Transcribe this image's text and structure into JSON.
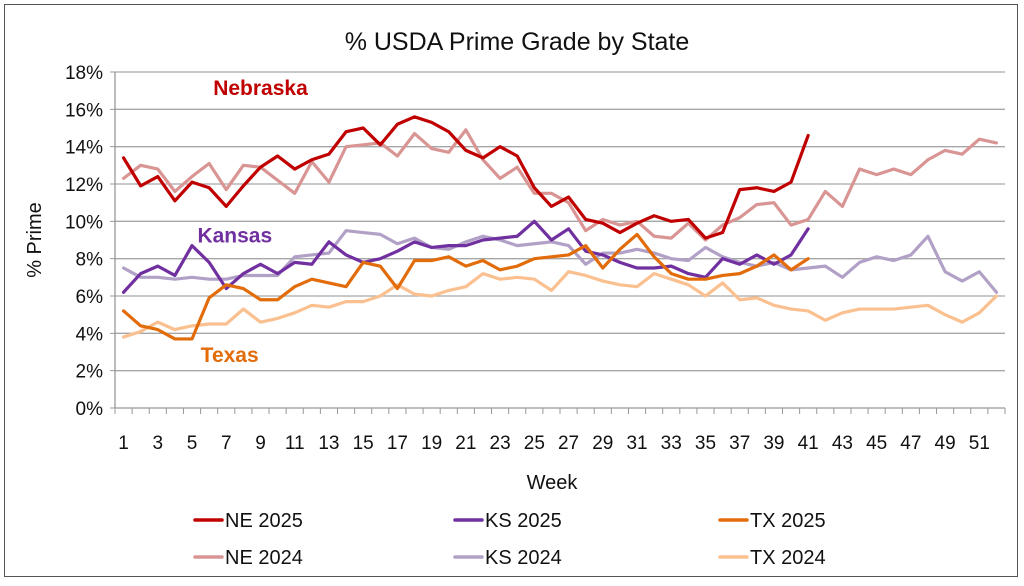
{
  "chart_data": {
    "type": "line",
    "title": "% USDA Prime Grade by State",
    "xlabel": "Week",
    "ylabel": "% Prime",
    "ylim": [
      0,
      18
    ],
    "y_ticks": [
      "0%",
      "2%",
      "4%",
      "6%",
      "8%",
      "10%",
      "12%",
      "14%",
      "16%",
      "18%"
    ],
    "x_tick_labels": [
      "1",
      "3",
      "5",
      "7",
      "9",
      "11",
      "13",
      "15",
      "17",
      "19",
      "21",
      "23",
      "25",
      "27",
      "29",
      "31",
      "33",
      "35",
      "37",
      "39",
      "41",
      "43",
      "45",
      "47",
      "49",
      "51"
    ],
    "grid": true,
    "legend_position": "bottom",
    "x": [
      1,
      2,
      3,
      4,
      5,
      6,
      7,
      8,
      9,
      10,
      11,
      12,
      13,
      14,
      15,
      16,
      17,
      18,
      19,
      20,
      21,
      22,
      23,
      24,
      25,
      26,
      27,
      28,
      29,
      30,
      31,
      32,
      33,
      34,
      35,
      36,
      37,
      38,
      39,
      40,
      41,
      42,
      43,
      44,
      45,
      46,
      47,
      48,
      49,
      50,
      51,
      52
    ],
    "series": [
      {
        "name": "NE 2025",
        "color": "#c00000",
        "values": [
          13.4,
          11.9,
          12.4,
          11.1,
          12.1,
          11.8,
          10.8,
          11.9,
          12.9,
          13.5,
          12.8,
          13.3,
          13.6,
          14.8,
          15.0,
          14.1,
          15.2,
          15.6,
          15.3,
          14.8,
          13.8,
          13.4,
          14.0,
          13.5,
          11.8,
          10.8,
          11.3,
          10.1,
          9.9,
          9.4,
          9.9,
          10.3,
          10.0,
          10.1,
          9.1,
          9.4,
          11.7,
          11.8,
          11.6,
          12.1,
          14.6
        ]
      },
      {
        "name": "KS 2025",
        "color": "#7030a0",
        "values": [
          6.2,
          7.2,
          7.6,
          7.1,
          8.7,
          7.8,
          6.4,
          7.2,
          7.7,
          7.2,
          7.8,
          7.7,
          8.9,
          8.2,
          7.8,
          8.0,
          8.4,
          8.9,
          8.6,
          8.7,
          8.7,
          9.0,
          9.1,
          9.2,
          10.0,
          9.0,
          9.6,
          8.4,
          8.2,
          7.8,
          7.5,
          7.5,
          7.6,
          7.2,
          7.0,
          8.0,
          7.7,
          8.2,
          7.7,
          8.2,
          9.6
        ]
      },
      {
        "name": "TX 2025",
        "color": "#e36c0a",
        "values": [
          5.2,
          4.4,
          4.2,
          3.7,
          3.7,
          5.9,
          6.6,
          6.4,
          5.8,
          5.8,
          6.5,
          6.9,
          6.7,
          6.5,
          7.8,
          7.6,
          6.4,
          7.9,
          7.9,
          8.1,
          7.6,
          7.9,
          7.4,
          7.6,
          8.0,
          8.1,
          8.2,
          8.7,
          7.5,
          8.5,
          9.3,
          8.1,
          7.2,
          6.9,
          6.9,
          7.1,
          7.2,
          7.6,
          8.2,
          7.4,
          8.0
        ]
      },
      {
        "name": "NE 2024",
        "color": "#d99594",
        "values": [
          12.3,
          13.0,
          12.8,
          11.6,
          12.4,
          13.1,
          11.7,
          13.0,
          12.9,
          12.2,
          11.5,
          13.2,
          12.1,
          14.0,
          14.1,
          14.2,
          13.5,
          14.7,
          13.9,
          13.7,
          14.9,
          13.3,
          12.3,
          12.9,
          11.5,
          11.5,
          11.0,
          9.5,
          10.1,
          9.8,
          10.0,
          9.2,
          9.1,
          9.9,
          9.0,
          9.8,
          10.2,
          10.9,
          11.0,
          9.8,
          10.1,
          11.6,
          10.8,
          12.8,
          12.5,
          12.8,
          12.5,
          13.3,
          13.8,
          13.6,
          14.4,
          14.2
        ]
      },
      {
        "name": "KS 2024",
        "color": "#b2a1c7",
        "values": [
          7.5,
          7.0,
          7.0,
          6.9,
          7.0,
          6.9,
          6.9,
          7.1,
          7.1,
          7.1,
          8.1,
          8.2,
          8.3,
          9.5,
          9.4,
          9.3,
          8.8,
          9.1,
          8.6,
          8.5,
          8.9,
          9.2,
          9.0,
          8.7,
          8.8,
          8.9,
          8.7,
          7.7,
          8.3,
          8.3,
          8.5,
          8.3,
          8.0,
          7.9,
          8.6,
          8.1,
          7.8,
          7.6,
          7.8,
          7.4,
          7.5,
          7.6,
          7.0,
          7.8,
          8.1,
          7.9,
          8.2,
          9.2,
          7.3,
          6.8,
          7.3,
          6.2
        ]
      },
      {
        "name": "TX 2024",
        "color": "#fac090",
        "values": [
          3.8,
          4.1,
          4.6,
          4.2,
          4.4,
          4.5,
          4.5,
          5.3,
          4.6,
          4.8,
          5.1,
          5.5,
          5.4,
          5.7,
          5.7,
          6.0,
          6.6,
          6.1,
          6.0,
          6.3,
          6.5,
          7.2,
          6.9,
          7.0,
          6.9,
          6.3,
          7.3,
          7.1,
          6.8,
          6.6,
          6.5,
          7.2,
          6.9,
          6.6,
          6.0,
          6.7,
          5.8,
          5.9,
          5.5,
          5.3,
          5.2,
          4.7,
          5.1,
          5.3,
          5.3,
          5.3,
          5.4,
          5.5,
          5.0,
          4.6,
          5.1,
          6.0
        ]
      }
    ],
    "annotations": [
      {
        "text": "Nebraska",
        "color": "#c00000",
        "x": 9,
        "y": 17.2
      },
      {
        "text": "Kansas",
        "color": "#7030a0",
        "x": 7.5,
        "y": 9.3
      },
      {
        "text": "Texas",
        "color": "#e36c0a",
        "x": 7.2,
        "y": 2.9
      }
    ]
  }
}
